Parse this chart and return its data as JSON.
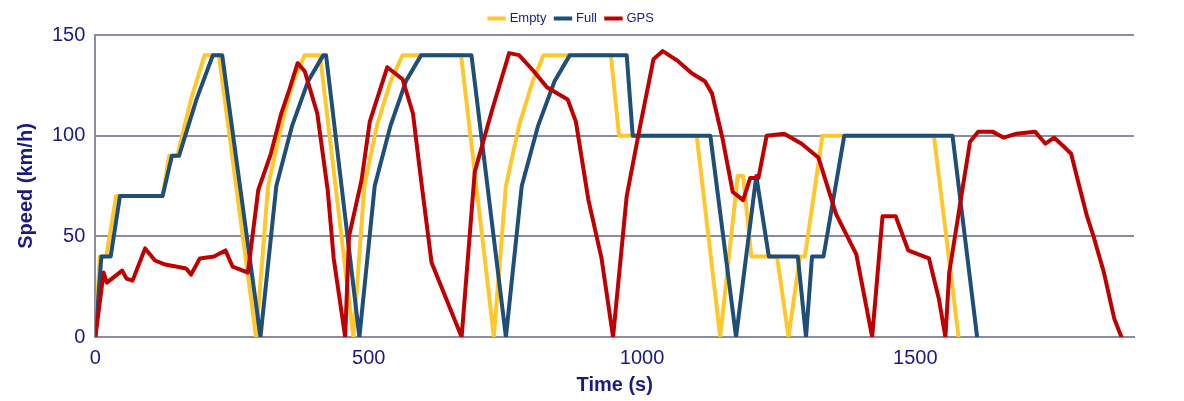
{
  "chart_data": {
    "type": "line",
    "xlabel": "Time (s)",
    "ylabel": "Speed (km/h)",
    "xlim": [
      0,
      1900
    ],
    "xticks": [
      0,
      500,
      1000,
      1500
    ],
    "ylim": [
      0,
      150
    ],
    "yticks": [
      0,
      50,
      100,
      150
    ],
    "grid": "y",
    "legend": "top",
    "marker": "none",
    "line_style": "solid",
    "series": [
      {
        "name": "Empty",
        "color": "#ffc72c",
        "x": [
          0,
          8,
          20,
          38,
          123,
          135,
          150,
          175,
          200,
          226,
          294,
          316,
          340,
          362,
          383,
          411,
          472,
          492,
          515,
          540,
          562,
          669,
          729,
          751,
          775,
          800,
          820,
          943,
          958,
          1100,
          1143,
          1175,
          1185,
          1200,
          1247,
          1268,
          1289,
          1298,
          1330,
          1534,
          1579
        ],
        "values": [
          0,
          40,
          40,
          70,
          70,
          90,
          90,
          118,
          140,
          140,
          0,
          75,
          105,
          127,
          140,
          140,
          0,
          75,
          105,
          127,
          140,
          140,
          0,
          75,
          105,
          127,
          140,
          140,
          100,
          100,
          0,
          80,
          80,
          40,
          40,
          0,
          40,
          40,
          100,
          100,
          0
        ]
      },
      {
        "name": "Full",
        "color": "#1f4e79",
        "x": [
          0,
          11,
          28,
          45,
          123,
          140,
          153,
          185,
          215,
          232,
          302,
          331,
          360,
          389,
          417,
          422,
          483,
          511,
          540,
          568,
          596,
          688,
          751,
          780,
          810,
          840,
          868,
          972,
          983,
          1125,
          1172,
          1209,
          1232,
          1285,
          1300,
          1311,
          1332,
          1370,
          1568,
          1613
        ],
        "values": [
          0,
          40,
          40,
          70,
          70,
          90,
          90,
          118,
          140,
          140,
          0,
          75,
          105,
          127,
          140,
          140,
          0,
          75,
          105,
          127,
          140,
          140,
          0,
          75,
          105,
          127,
          140,
          140,
          100,
          100,
          0,
          80,
          40,
          40,
          0,
          40,
          40,
          100,
          100,
          0
        ]
      },
      {
        "name": "GPS",
        "color": "#c00000",
        "x": [
          0,
          15,
          21,
          49,
          57,
          68,
          91,
          109,
          128,
          166,
          175,
          191,
          217,
          238,
          251,
          279,
          298,
          321,
          340,
          355,
          370,
          383,
          406,
          425,
          436,
          457,
          464,
          487,
          502,
          534,
          562,
          581,
          594,
          615,
          670,
          694,
          726,
          757,
          775,
          802,
          826,
          864,
          879,
          902,
          926,
          947,
          972,
          996,
          1021,
          1038,
          1066,
          1091,
          1115,
          1128,
          1147,
          1166,
          1185,
          1198,
          1213,
          1228,
          1260,
          1292,
          1323,
          1355,
          1392,
          1421,
          1440,
          1464,
          1487,
          1525,
          1543,
          1555,
          1562,
          1600,
          1615,
          1641,
          1662,
          1685,
          1719,
          1738,
          1754,
          1770,
          1785,
          1798,
          1814,
          1826,
          1845,
          1864,
          1877
        ],
        "values": [
          0,
          32,
          27,
          33,
          29,
          28,
          44,
          38,
          36,
          34,
          31,
          39,
          40,
          43,
          35,
          32,
          73,
          91,
          111,
          123,
          136,
          132,
          111,
          73,
          39,
          0,
          50,
          78,
          107,
          134,
          128,
          111,
          82,
          37,
          0,
          82,
          113,
          141,
          140,
          132,
          124,
          118,
          107,
          68,
          39,
          0,
          70,
          104,
          138,
          142,
          137,
          131,
          127,
          121,
          99,
          72,
          68,
          79,
          79,
          100,
          101,
          96,
          89,
          61,
          41,
          0,
          60,
          60,
          43,
          39,
          19,
          0,
          32,
          97,
          102,
          102,
          99,
          101,
          102,
          96,
          99,
          95,
          91,
          77,
          60,
          50,
          32,
          9,
          0
        ]
      }
    ]
  }
}
